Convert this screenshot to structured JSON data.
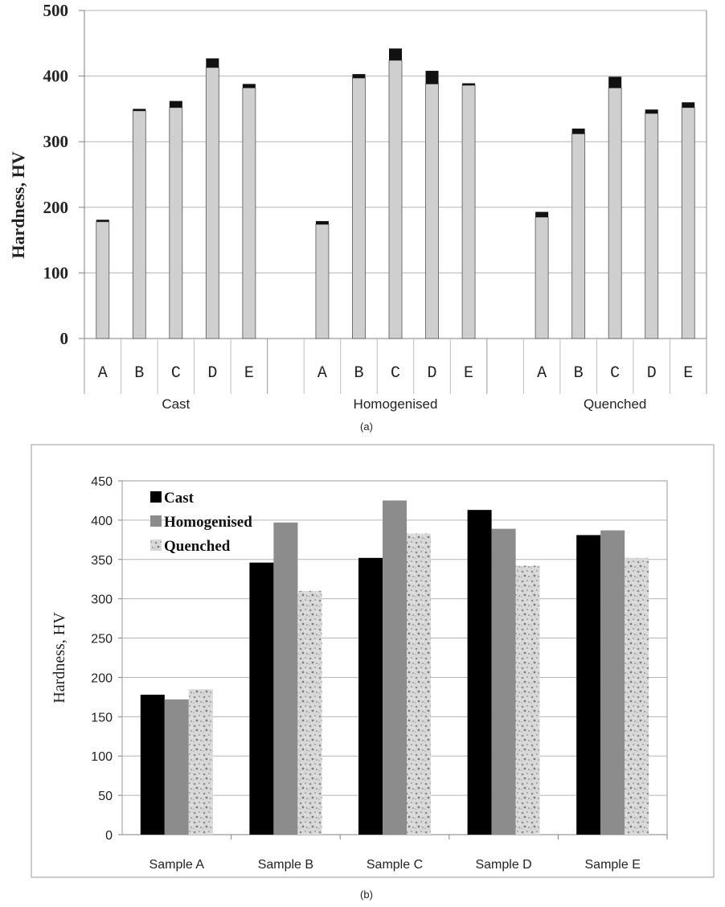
{
  "colors": {
    "base_bar": "#cfcfcf",
    "cap_bar": "#111111",
    "cast": "#000000",
    "homogenised": "#8c8c8c",
    "quenched": "#cfcfcf",
    "grid": "#b5b5b5",
    "axis": "#808080"
  },
  "chart_data": [
    {
      "id": "a",
      "type": "bar",
      "subtype": "stacked-with-error-caps",
      "panel_label": "(a)",
      "ylabel": "Hardness, HV",
      "ylim": [
        0,
        500
      ],
      "yticks": [
        "0",
        "100",
        "200",
        "300",
        "400",
        "500"
      ],
      "groups": [
        {
          "name": "Cast",
          "bars": [
            {
              "cat": "A",
              "value": 178,
              "cap": 3
            },
            {
              "cat": "B",
              "value": 347,
              "cap": 3
            },
            {
              "cat": "C",
              "value": 352,
              "cap": 10
            },
            {
              "cat": "D",
              "value": 413,
              "cap": 14
            },
            {
              "cat": "E",
              "value": 382,
              "cap": 6
            }
          ]
        },
        {
          "name": "Homogenised",
          "bars": [
            {
              "cat": "A",
              "value": 174,
              "cap": 5
            },
            {
              "cat": "B",
              "value": 397,
              "cap": 6
            },
            {
              "cat": "C",
              "value": 424,
              "cap": 18
            },
            {
              "cat": "D",
              "value": 388,
              "cap": 20
            },
            {
              "cat": "E",
              "value": 386,
              "cap": 3
            }
          ]
        },
        {
          "name": "Quenched",
          "bars": [
            {
              "cat": "A",
              "value": 185,
              "cap": 8
            },
            {
              "cat": "B",
              "value": 312,
              "cap": 8
            },
            {
              "cat": "C",
              "value": 382,
              "cap": 17
            },
            {
              "cat": "D",
              "value": 343,
              "cap": 6
            },
            {
              "cat": "E",
              "value": 352,
              "cap": 8
            }
          ]
        }
      ]
    },
    {
      "id": "b",
      "type": "bar",
      "panel_label": "(b)",
      "ylabel": "Hardness, HV",
      "ylim": [
        0,
        450
      ],
      "yticks": [
        "0",
        "50",
        "100",
        "150",
        "200",
        "250",
        "300",
        "350",
        "400",
        "450"
      ],
      "categories": [
        "Sample A",
        "Sample B",
        "Sample C",
        "Sample D",
        "Sample E"
      ],
      "series": [
        {
          "name": "Cast",
          "values": [
            178,
            346,
            352,
            413,
            381
          ]
        },
        {
          "name": "Homogenised",
          "values": [
            172,
            397,
            425,
            389,
            387
          ]
        },
        {
          "name": "Quenched",
          "values": [
            185,
            310,
            383,
            342,
            352
          ]
        }
      ],
      "legend_position": "top-left"
    }
  ]
}
